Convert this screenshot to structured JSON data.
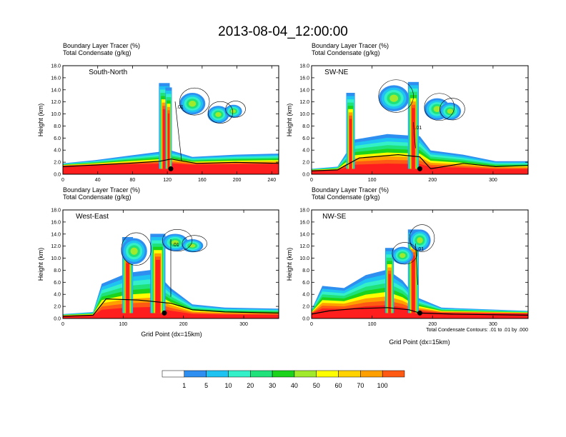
{
  "figure_title": "2013-08-04_12:00:00",
  "shading_label": "Boundary Layer Tracer   (%)",
  "contour_label": "Total Condensate   (g/kg)",
  "y_axis_label": "Height (km)",
  "x_axis_label": "Grid Point (dx=15km)",
  "contour_note": "Total Condensate Contours: .01 to .01 by .000",
  "contour_value_label": ".01",
  "colorbar": {
    "labels": [
      "1",
      "5",
      "10",
      "20",
      "30",
      "40",
      "50",
      "60",
      "70",
      "100"
    ],
    "colors": [
      "#ffffff",
      "#2e8ff0",
      "#1fc3f2",
      "#33f0c8",
      "#20e27a",
      "#1bd31b",
      "#a0ea2b",
      "#fffe00",
      "#ffd200",
      "#ffa000",
      "#ff5a14",
      "#ff1e1e"
    ]
  },
  "chart_data": [
    {
      "type": "heatmap",
      "panel_label": "South-North",
      "ylim": [
        0,
        18
      ],
      "xlim": [
        0,
        248
      ],
      "y_ticks": [
        "0.0",
        "2.0",
        "4.0",
        "6.0",
        "8.0",
        "10.0",
        "12.0",
        "14.0",
        "16.0",
        "18.0"
      ],
      "x_ticks": [
        "0",
        "40",
        "80",
        "120",
        "160",
        "200",
        "240"
      ],
      "x_tick_values": [
        0,
        40,
        80,
        120,
        160,
        200,
        240
      ]
    },
    {
      "type": "heatmap",
      "panel_label": "SW-NE",
      "ylim": [
        0,
        18
      ],
      "xlim": [
        0,
        358
      ],
      "y_ticks": [
        "0.0",
        "2.0",
        "4.0",
        "6.0",
        "8.0",
        "10.0",
        "12.0",
        "14.0",
        "16.0",
        "18.0"
      ],
      "x_ticks": [
        "0",
        "100",
        "200",
        "300"
      ],
      "x_tick_values": [
        0,
        100,
        200,
        300
      ]
    },
    {
      "type": "heatmap",
      "panel_label": "West-East",
      "ylim": [
        0,
        18
      ],
      "xlim": [
        0,
        358
      ],
      "y_ticks": [
        "0.0",
        "2.0",
        "4.0",
        "6.0",
        "8.0",
        "10.0",
        "12.0",
        "14.0",
        "16.0",
        "18.0"
      ],
      "x_ticks": [
        "0",
        "100",
        "200",
        "300"
      ],
      "x_tick_values": [
        0,
        100,
        200,
        300
      ]
    },
    {
      "type": "heatmap",
      "panel_label": "NW-SE",
      "ylim": [
        0,
        18
      ],
      "xlim": [
        0,
        358
      ],
      "y_ticks": [
        "0.0",
        "2.0",
        "4.0",
        "6.0",
        "8.0",
        "10.0",
        "12.0",
        "14.0",
        "16.0",
        "18.0"
      ],
      "x_ticks": [
        "0",
        "100",
        "200",
        "300"
      ],
      "x_tick_values": [
        0,
        100,
        200,
        300
      ]
    }
  ]
}
